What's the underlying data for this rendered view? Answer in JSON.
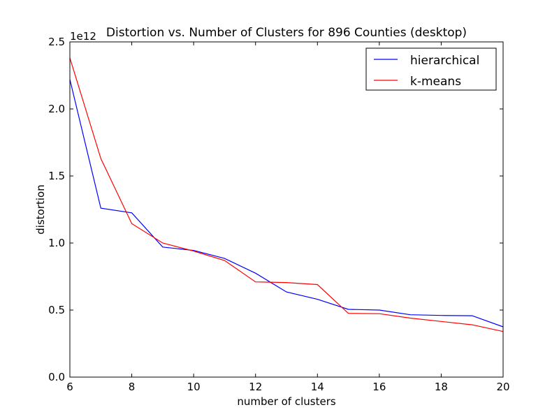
{
  "chart_data": {
    "type": "line",
    "title": "Distortion vs. Number of Clusters for 896 Counties (desktop)",
    "xlabel": "number of clusters",
    "ylabel": "distortion",
    "y_offset_text": "1e12",
    "xlim": [
      6,
      20
    ],
    "ylim": [
      0.0,
      2.5
    ],
    "xticks": [
      "6",
      "8",
      "10",
      "12",
      "14",
      "16",
      "18",
      "20"
    ],
    "yticks": [
      "0.0",
      "0.5",
      "1.0",
      "1.5",
      "2.0",
      "2.5"
    ],
    "grid": false,
    "legend_position": "top-right",
    "x": [
      6,
      7,
      8,
      9,
      10,
      11,
      12,
      13,
      14,
      15,
      16,
      17,
      18,
      19,
      20
    ],
    "series": [
      {
        "name": "hierarchical",
        "color": "#0000ff",
        "values": [
          2.22,
          1.26,
          1.225,
          0.97,
          0.945,
          0.885,
          0.775,
          0.635,
          0.58,
          0.505,
          0.5,
          0.465,
          0.46,
          0.458,
          0.375
        ]
      },
      {
        "name": "k-means",
        "color": "#ff0000",
        "values": [
          2.38,
          1.63,
          1.145,
          1.0,
          0.94,
          0.87,
          0.71,
          0.705,
          0.69,
          0.475,
          0.473,
          0.44,
          0.415,
          0.39,
          0.34
        ]
      }
    ]
  }
}
